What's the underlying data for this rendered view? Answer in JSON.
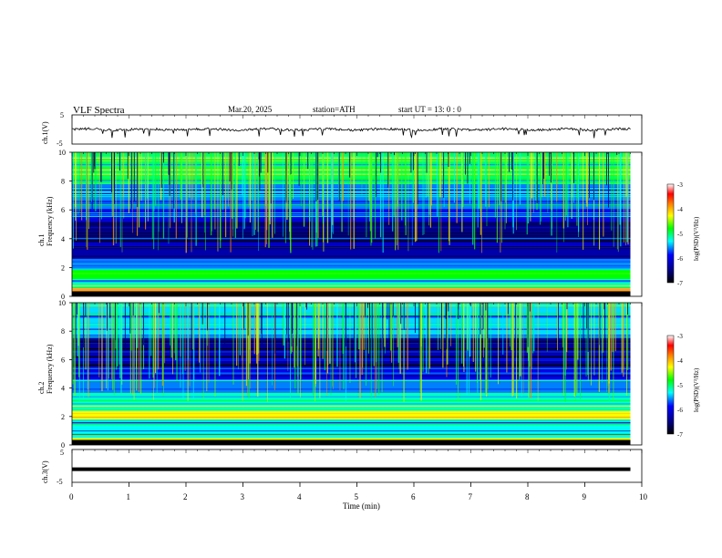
{
  "header": {
    "title": "VLF  Spectra",
    "date": "Mar.20, 2025",
    "station": "station=ATH",
    "start_ut": "start  UT  =    13: 0   : 0"
  },
  "chart_data": [
    {
      "type": "line",
      "panel": "ch1-waveform",
      "ylabel": "ch.1(V)",
      "ylim": [
        -5,
        5
      ],
      "yticks": [
        "5",
        "-5"
      ],
      "x_range_min": [
        0,
        9.8
      ],
      "description_values": "noisy waveform around approximately 0 V with spikes down to about -2 V"
    },
    {
      "type": "heatmap",
      "panel": "ch1-spectrogram",
      "ylabel": "ch.1\nFrequency  (kHz)",
      "ylim": [
        0,
        10
      ],
      "yticks": [
        "0",
        "2",
        "4",
        "6",
        "8",
        "10"
      ],
      "colorbar": {
        "label": "log(PSD)(V²/Hz)",
        "range": [
          -7,
          -3
        ],
        "ticks": [
          "-3",
          "-4",
          "-5",
          "-6",
          "-7"
        ]
      },
      "bands_khz": [
        {
          "from": 0.0,
          "to": 0.6,
          "level": -4.0
        },
        {
          "from": 0.6,
          "to": 1.2,
          "level": -5.2
        },
        {
          "from": 1.2,
          "to": 1.9,
          "level": -4.8
        },
        {
          "from": 1.9,
          "to": 2.6,
          "level": -5.6
        },
        {
          "from": 2.6,
          "to": 3.4,
          "level": -6.3
        },
        {
          "from": 3.4,
          "to": 5.2,
          "level": -6.6
        },
        {
          "from": 5.2,
          "to": 6.0,
          "level": -6.0
        },
        {
          "from": 6.0,
          "to": 7.8,
          "level": -5.6
        },
        {
          "from": 7.8,
          "to": 10.0,
          "level": -5.0
        }
      ]
    },
    {
      "type": "heatmap",
      "panel": "ch2-spectrogram",
      "ylabel": "ch.2\nFrequency  (kHz)",
      "ylim": [
        0,
        10
      ],
      "yticks": [
        "0",
        "2",
        "4",
        "6",
        "8",
        "10"
      ],
      "colorbar": {
        "label": "log(PSD)(V²/Hz)",
        "range": [
          -7,
          -3
        ],
        "ticks": [
          "-3",
          "-4",
          "-5",
          "-6",
          "-7"
        ]
      },
      "bands_khz": [
        {
          "from": 0.0,
          "to": 0.5,
          "level": -4.2
        },
        {
          "from": 0.5,
          "to": 1.8,
          "level": -5.3
        },
        {
          "from": 1.8,
          "to": 2.4,
          "level": -4.3
        },
        {
          "from": 2.4,
          "to": 3.6,
          "level": -5.2
        },
        {
          "from": 3.6,
          "to": 4.6,
          "level": -5.6
        },
        {
          "from": 4.6,
          "to": 5.4,
          "level": -6.0
        },
        {
          "from": 5.4,
          "to": 7.6,
          "level": -6.4
        },
        {
          "from": 7.6,
          "to": 10.0,
          "level": -5.4
        }
      ]
    },
    {
      "type": "line",
      "panel": "ch3-waveform",
      "ylabel": "ch.3(V)",
      "ylim": [
        -5,
        5
      ],
      "yticks": [
        "5",
        "-5"
      ],
      "x_range_min": [
        0,
        9.8
      ],
      "description_values": "flat thick trace at about -1 V"
    }
  ],
  "xaxis": {
    "label": "Time  (min)",
    "ticks": [
      "0",
      "1",
      "2",
      "3",
      "4",
      "5",
      "6",
      "7",
      "8",
      "9",
      "10"
    ],
    "range": [
      0,
      10
    ]
  }
}
